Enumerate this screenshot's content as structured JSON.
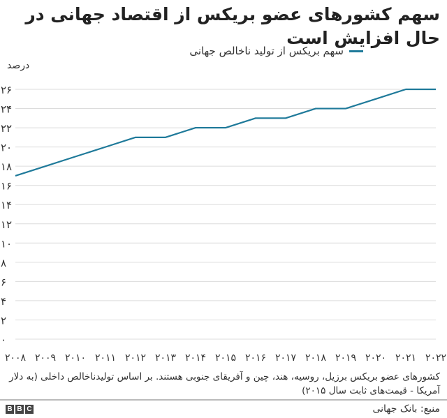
{
  "chart_data": {
    "type": "line",
    "title": "سهم کشورهای عضو بریکس از اقتصاد جهانی در حال افزایش است",
    "ylabel": "درصد",
    "xlabel": "",
    "ylim": [
      0,
      26
    ],
    "grid": true,
    "legend_placement": "top",
    "x": [
      2008,
      2009,
      2010,
      2011,
      2012,
      2013,
      2014,
      2015,
      2016,
      2017,
      2018,
      2019,
      2020,
      2021,
      2022
    ],
    "x_tick_labels": [
      "۲۰۰۸",
      "۲۰۰۹",
      "۲۰۱۰",
      "۲۰۱۱",
      "۲۰۱۲",
      "۲۰۱۳",
      "۲۰۱۴",
      "۲۰۱۵",
      "۲۰۱۶",
      "۲۰۱۷",
      "۲۰۱۸",
      "۲۰۱۹",
      "۲۰۲۰",
      "۲۰۲۱",
      "۲۰۲۲"
    ],
    "y_ticks": [
      0,
      2,
      4,
      6,
      8,
      10,
      12,
      14,
      16,
      18,
      20,
      22,
      24,
      26
    ],
    "y_tick_labels": [
      "۰",
      "۲",
      "۴",
      "۶",
      "۸",
      "۱۰",
      "۱۲",
      "۱۴",
      "۱۶",
      "۱۸",
      "۲۰",
      "۲۲",
      "۲۴",
      "۲۶"
    ],
    "series": [
      {
        "name": "سهم بریکس از تولید ناخالص جهانی",
        "color": "#1f7a9a",
        "values": [
          17,
          18,
          19,
          20,
          21,
          21,
          22,
          22,
          23,
          23,
          24,
          24,
          25,
          26,
          26
        ]
      }
    ]
  },
  "footnote": "کشورهای عضو بریکس برزیل، روسیه، هند، چین و آفریقای جنوبی هستند. بر اساس تولیدناخالص داخلی (به دلار آمریکا - قیمت‌های ثابت سال ۲۰۱۵)",
  "source": "منبع: بانک جهانی",
  "logo": "BBC"
}
